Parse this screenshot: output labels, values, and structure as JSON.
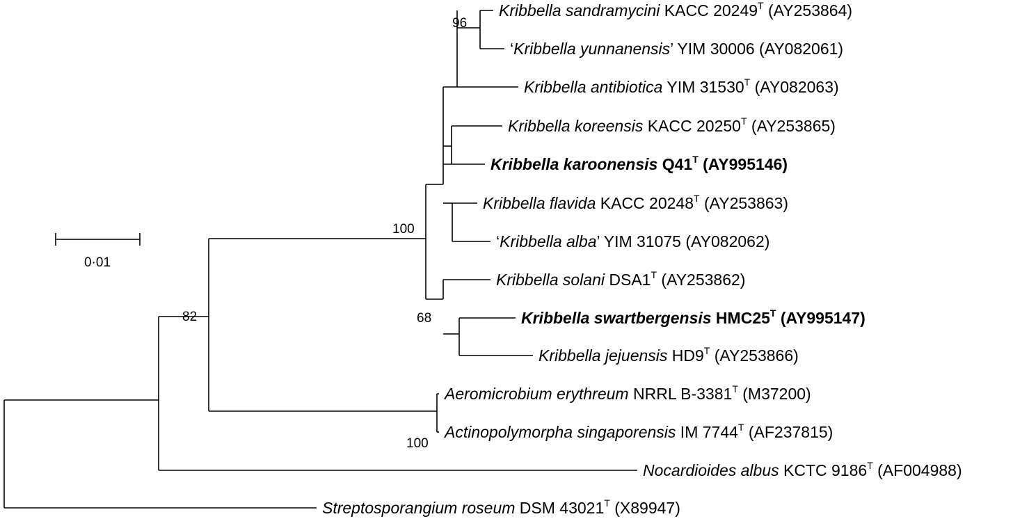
{
  "scale_bar": {
    "label": "0·01"
  },
  "taxa": [
    {
      "id": "sandramycini",
      "species": "Kribbella sandramycini",
      "strain": "KACC 20249",
      "type_strain": true,
      "accession": "(AY253864)",
      "bold": false,
      "quoted": false
    },
    {
      "id": "yunnanensis",
      "species": "Kribbella yunnanensis",
      "strain": "YIM 30006",
      "type_strain": false,
      "accession": "(AY082061)",
      "bold": false,
      "quoted": true
    },
    {
      "id": "antibiotica",
      "species": "Kribbella antibiotica",
      "strain": "YIM 31530",
      "type_strain": true,
      "accession": "(AY082063)",
      "bold": false,
      "quoted": false
    },
    {
      "id": "koreensis",
      "species": "Kribbella koreensis",
      "strain": "KACC 20250",
      "type_strain": true,
      "accession": "(AY253865)",
      "bold": false,
      "quoted": false
    },
    {
      "id": "karoonensis",
      "species": "Kribbella karoonensis",
      "strain": "Q41",
      "type_strain": true,
      "accession": "(AY995146)",
      "bold": true,
      "quoted": false
    },
    {
      "id": "flavida",
      "species": "Kribbella flavida",
      "strain": "KACC 20248",
      "type_strain": true,
      "accession": "(AY253863)",
      "bold": false,
      "quoted": false
    },
    {
      "id": "alba",
      "species": "Kribbella alba",
      "strain": "YIM 31075",
      "type_strain": false,
      "accession": "(AY082062)",
      "bold": false,
      "quoted": true
    },
    {
      "id": "solani",
      "species": "Kribbella solani",
      "strain": "DSA1",
      "type_strain": true,
      "accession": "(AY253862)",
      "bold": false,
      "quoted": false
    },
    {
      "id": "swartbergensis",
      "species": "Kribbella swartbergensis",
      "strain": "HMC25",
      "type_strain": true,
      "accession": "(AY995147)",
      "bold": true,
      "quoted": false
    },
    {
      "id": "jejuensis",
      "species": "Kribbella jejuensis",
      "strain": "HD9",
      "type_strain": true,
      "accession": "(AY253866)",
      "bold": false,
      "quoted": false
    },
    {
      "id": "erythreum",
      "species": "Aeromicrobium erythreum",
      "strain": "NRRL B-3381",
      "type_strain": true,
      "accession": "(M37200)",
      "bold": false,
      "quoted": false
    },
    {
      "id": "singaporensis",
      "species": "Actinopolymorpha singaporensis",
      "strain": "IM 7744",
      "type_strain": true,
      "accession": "(AF237815)",
      "bold": false,
      "quoted": false
    },
    {
      "id": "albus",
      "species": "Nocardioides albus",
      "strain": "KCTC 9186",
      "type_strain": true,
      "accession": "(AF004988)",
      "bold": false,
      "quoted": false
    },
    {
      "id": "roseum",
      "species": "Streptosporangium roseum",
      "strain": "DSM 43021",
      "type_strain": true,
      "accession": "(X89947)",
      "bold": false,
      "quoted": false
    }
  ],
  "support_values": [
    {
      "node": "sandramycini-yunnanensis",
      "value": "96"
    },
    {
      "node": "kribbella-genus",
      "value": "100"
    },
    {
      "node": "solani-swartbergensis-jejuensis",
      "value": "68"
    },
    {
      "node": "kribbella-plus-aeromicrobium",
      "value": "82"
    },
    {
      "node": "aeromicrobium-actinopolymorpha",
      "value": "100"
    }
  ]
}
